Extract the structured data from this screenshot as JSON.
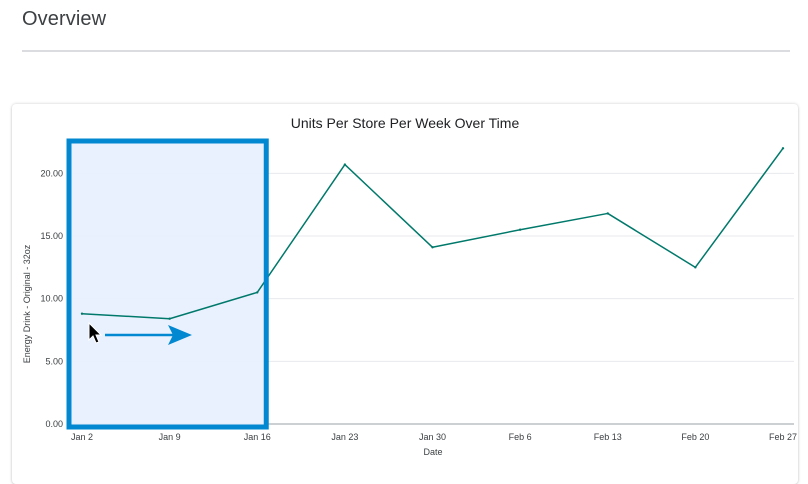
{
  "page": {
    "title": "Overview"
  },
  "colors": {
    "line": "#00796b",
    "selection_fill": "#e8f0fe",
    "selection_border": "#0288d1",
    "arrow": "#0288d1",
    "grid": "#e8eaed"
  },
  "chart_data": {
    "type": "line",
    "title": "Units Per Store Per Week Over Time",
    "xlabel": "Date",
    "ylabel": "Energy Drink - Original - 32oz",
    "categories": [
      "Jan 2",
      "Jan 9",
      "Jan 16",
      "Jan 23",
      "Jan 30",
      "Feb 6",
      "Feb 13",
      "Feb 20",
      "Feb 27"
    ],
    "series": [
      {
        "name": "Energy Drink - Original - 32oz",
        "values": [
          8.8,
          8.4,
          10.5,
          20.7,
          14.1,
          15.5,
          16.8,
          12.5,
          22.0
        ]
      }
    ],
    "ylim": [
      0,
      22.5
    ],
    "yticks": [
      0,
      5,
      10,
      15,
      20
    ],
    "ytick_labels": [
      "0.00",
      "5.00",
      "10.00",
      "15.00",
      "20.00"
    ],
    "grid": true,
    "selection": {
      "from": "Jan 2",
      "to": "Jan 16"
    }
  },
  "icons": {
    "cursor": "mouse-pointer-icon",
    "arrow": "right-arrow-icon"
  }
}
